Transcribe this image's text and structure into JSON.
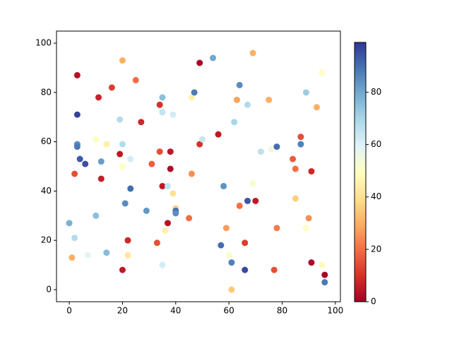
{
  "chart_data": {
    "type": "scatter",
    "x": [
      3,
      2,
      3,
      3,
      3,
      4,
      6,
      0,
      2,
      1,
      7,
      10,
      10,
      11,
      12,
      12,
      14,
      14,
      16,
      20,
      19,
      20,
      19,
      20,
      23,
      21,
      23,
      22,
      22,
      20,
      25,
      27,
      29,
      31,
      33,
      34,
      35,
      35,
      34,
      35,
      37,
      36,
      35,
      37,
      38,
      38,
      39,
      39,
      40,
      40,
      40,
      45,
      46,
      47,
      46,
      49,
      49,
      50,
      54,
      56,
      57,
      58,
      59,
      60,
      61,
      61,
      62,
      63,
      64,
      64,
      66,
      66,
      67,
      67,
      69,
      69,
      70,
      72,
      75,
      76,
      77,
      78,
      78,
      84,
      85,
      85,
      87,
      87,
      89,
      89,
      90,
      91,
      91,
      93,
      95,
      95,
      96,
      96
    ],
    "y": [
      87,
      47,
      71,
      59,
      58,
      53,
      51,
      27,
      21,
      13,
      14,
      30,
      61,
      78,
      52,
      45,
      59,
      15,
      82,
      93,
      69,
      59,
      55,
      50,
      53,
      35,
      41,
      20,
      14,
      8,
      85,
      68,
      32,
      51,
      19,
      75,
      78,
      72,
      56,
      42,
      42,
      24,
      10,
      27,
      56,
      49,
      71,
      39,
      33,
      32,
      31,
      29,
      78,
      80,
      47,
      92,
      59,
      61,
      94,
      63,
      18,
      42,
      25,
      14,
      11,
      0,
      68,
      77,
      83,
      34,
      19,
      8,
      75,
      36,
      96,
      43,
      36,
      56,
      77,
      57,
      8,
      58,
      25,
      53,
      49,
      37,
      62,
      59,
      80,
      25,
      29,
      48,
      11,
      74,
      88,
      10,
      6,
      3
    ],
    "c": [
      3,
      15,
      97,
      85,
      88,
      93,
      95,
      78,
      68,
      30,
      58,
      75,
      50,
      7,
      82,
      6,
      45,
      76,
      12,
      30,
      68,
      68,
      5,
      50,
      62,
      85,
      90,
      8,
      42,
      5,
      20,
      8,
      83,
      17,
      15,
      10,
      75,
      65,
      15,
      5,
      65,
      45,
      62,
      4,
      5,
      2,
      62,
      40,
      37,
      90,
      85,
      20,
      45,
      88,
      25,
      1,
      10,
      64,
      80,
      5,
      90,
      84,
      27,
      52,
      87,
      35,
      70,
      28,
      85,
      20,
      12,
      96,
      68,
      94,
      30,
      52,
      5,
      66,
      30,
      55,
      15,
      90,
      22,
      17,
      20,
      36,
      15,
      87,
      72,
      50,
      25,
      8,
      2,
      30,
      50,
      48,
      1,
      88
    ],
    "colormap_colors": [
      "#a50026",
      "#d73027",
      "#f46d43",
      "#fdae61",
      "#fee090",
      "#ffffbf",
      "#e0f3f8",
      "#abd9e9",
      "#74add1",
      "#4575b4",
      "#313695"
    ],
    "xlim": [
      -4.8,
      101.9
    ],
    "ylim": [
      -4.9,
      104.9
    ],
    "xticks": [
      0,
      20,
      40,
      60,
      80,
      100
    ],
    "yticks": [
      0,
      20,
      40,
      60,
      80,
      100
    ],
    "clim": [
      0,
      99
    ],
    "cticks": [
      0,
      20,
      40,
      60,
      80
    ]
  }
}
